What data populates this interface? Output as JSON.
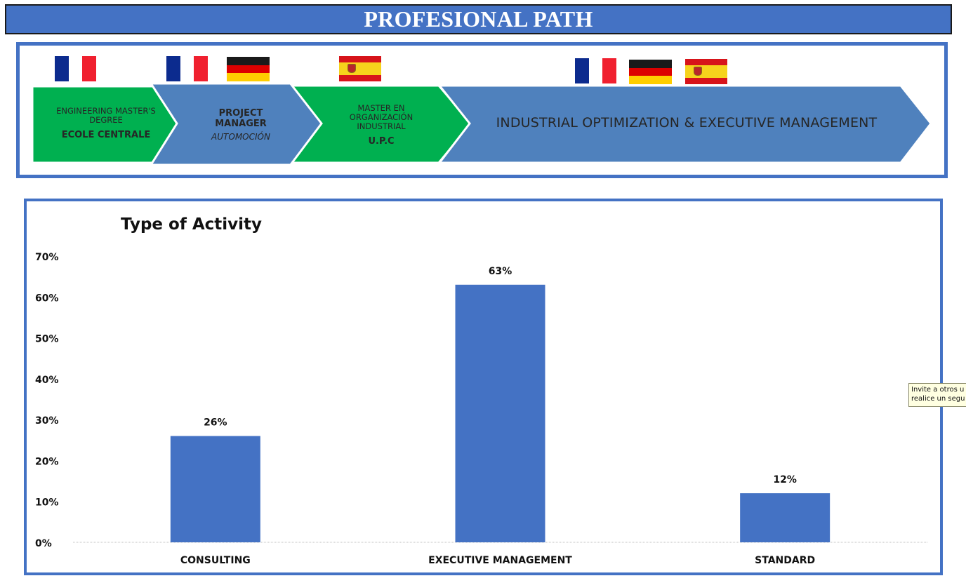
{
  "banner": {
    "title": "PROFESIONAL PATH"
  },
  "path": {
    "steps": [
      {
        "lines": [
          "ENGINEERING MASTER'S",
          "DEGREE"
        ],
        "name": "ECOLE CENTRALE",
        "sub": "",
        "color": "#00b050",
        "flags": [
          "fr"
        ]
      },
      {
        "lines": [],
        "name": "PROJECT MANAGER",
        "sub": "AUTOMOCIÓN",
        "color": "#4f81bd",
        "flags": [
          "fr",
          "de"
        ]
      },
      {
        "lines": [
          "MASTER EN",
          "ORGANIZACIÓN",
          "INDUSTRIAL"
        ],
        "name": "U.P.C",
        "sub": "",
        "color": "#00b050",
        "flags": [
          "es"
        ]
      },
      {
        "lines": [],
        "name": "INDUSTRIAL OPTIMIZATION & EXECUTIVE MANAGEMENT",
        "sub": "",
        "color": "#4f81bd",
        "flags": [
          "fr",
          "de",
          "es"
        ]
      }
    ]
  },
  "chart_data": {
    "type": "bar",
    "title": "Type of Activity",
    "categories": [
      "CONSULTING",
      "EXECUTIVE MANAGEMENT",
      "STANDARD"
    ],
    "values": [
      26,
      63,
      12
    ],
    "data_labels": [
      "26%",
      "63%",
      "12%"
    ],
    "ylim": [
      0,
      70
    ],
    "yticks": [
      "0%",
      "10%",
      "20%",
      "30%",
      "40%",
      "50%",
      "60%",
      "70%"
    ],
    "xlabel": "",
    "ylabel": "",
    "grid": false,
    "legend": "none",
    "bar_color": "#4472c4"
  },
  "tooltip": {
    "line1": "Invite a otros u",
    "line2": "realice un segu"
  }
}
